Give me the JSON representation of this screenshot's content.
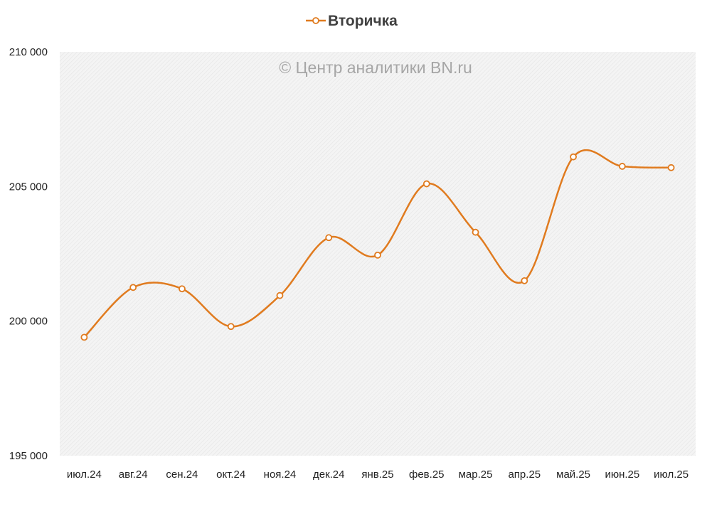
{
  "chart_data": {
    "type": "line",
    "title": "",
    "xlabel": "",
    "ylabel": "",
    "watermark": "© Центр аналитики BN.ru",
    "categories": [
      "июл.24",
      "авг.24",
      "сен.24",
      "окт.24",
      "ноя.24",
      "дек.24",
      "янв.25",
      "фев.25",
      "мар.25",
      "апр.25",
      "май.25",
      "июн.25",
      "июл.25"
    ],
    "series": [
      {
        "name": "Вторичка",
        "color": "#e07b1f",
        "values": [
          199400,
          201250,
          201200,
          199800,
          200950,
          203100,
          202450,
          205100,
          203300,
          201500,
          206100,
          205750,
          205700
        ]
      }
    ],
    "ylim": [
      195000,
      210000
    ],
    "yticks": [
      195000,
      200000,
      205000,
      210000
    ],
    "ytick_labels": [
      "195 000",
      "200 000",
      "205 000",
      "210 000"
    ],
    "legend_position": "top-center",
    "grid": false,
    "plot_background": "hatched-light-gray"
  }
}
